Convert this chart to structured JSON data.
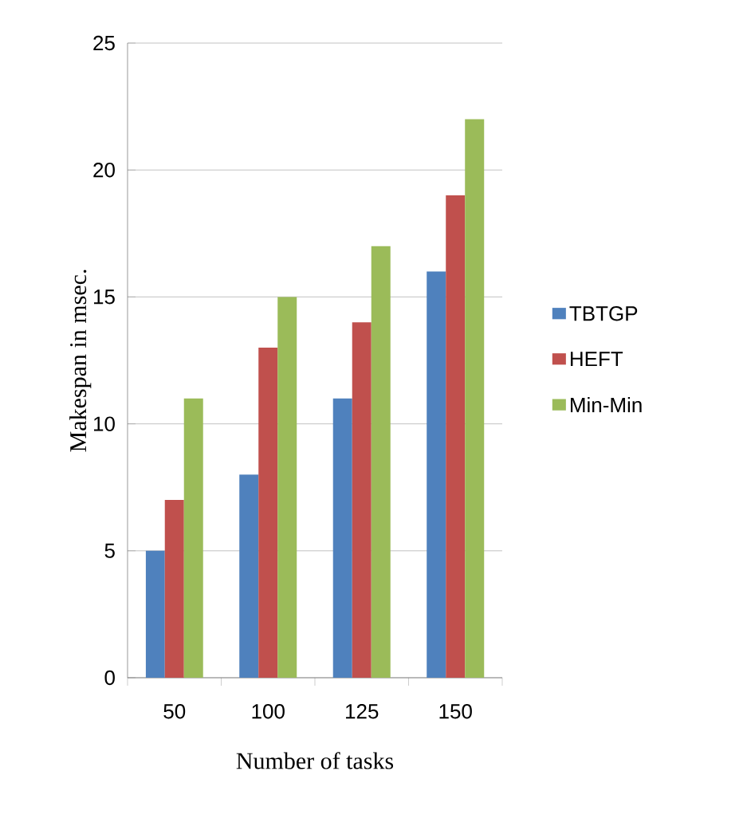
{
  "chart_data": {
    "type": "bar",
    "xlabel": "Number of tasks",
    "ylabel": "Makespan in msec.",
    "categories": [
      "50",
      "100",
      "125",
      "150"
    ],
    "series": [
      {
        "name": "TBTGP",
        "color": "#4f81bd",
        "values": [
          5,
          8,
          11,
          16
        ]
      },
      {
        "name": "HEFT",
        "color": "#c0504d",
        "values": [
          7,
          13,
          14,
          19
        ]
      },
      {
        "name": "Min-Min",
        "color": "#9bbb59",
        "values": [
          11,
          15,
          17,
          22
        ]
      }
    ],
    "ylim": [
      0,
      25
    ],
    "yticks": [
      0,
      5,
      10,
      15,
      20,
      25
    ],
    "grid": "y",
    "legend": "right"
  }
}
